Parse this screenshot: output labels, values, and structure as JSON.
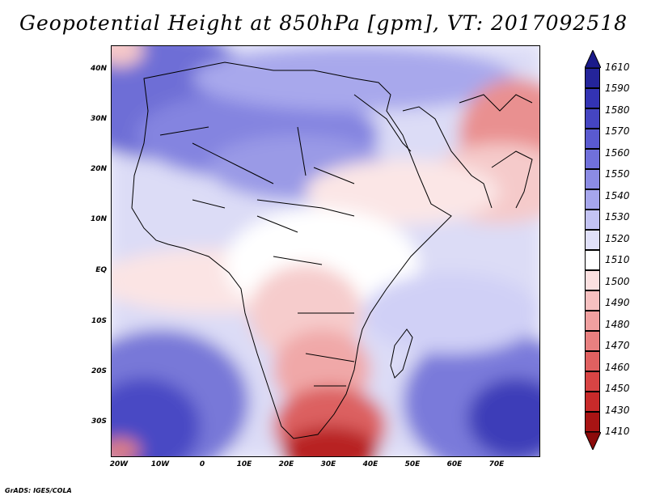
{
  "title": "Geopotential Height at 850hPa [gpm], VT: 2017092518",
  "credit": "GrADS: IGES/COLA",
  "lat_ticks": [
    "40N",
    "30N",
    "20N",
    "10N",
    "EQ",
    "10S",
    "20S",
    "30S"
  ],
  "lon_ticks": [
    "20W",
    "10W",
    "0",
    "10E",
    "20E",
    "30E",
    "40E",
    "50E",
    "60E",
    "70E"
  ],
  "colorbar": {
    "levels": [
      "1610",
      "1590",
      "1580",
      "1570",
      "1560",
      "1550",
      "1540",
      "1530",
      "1520",
      "1510",
      "1500",
      "1490",
      "1480",
      "1470",
      "1460",
      "1450",
      "1430",
      "1410"
    ],
    "colors": [
      "#24249a",
      "#3333b3",
      "#4545c2",
      "#5a5ad0",
      "#7070db",
      "#8b8be4",
      "#a6a6ec",
      "#c3c3f3",
      "#e0e0f9",
      "#ffffff",
      "#fbe0e0",
      "#f6c0c0",
      "#f0a0a0",
      "#e88080",
      "#e06060",
      "#d84444",
      "#c82a2a",
      "#a81414"
    ],
    "top_color": "#1a1a8a",
    "bottom_color": "#8c0b0b"
  }
}
